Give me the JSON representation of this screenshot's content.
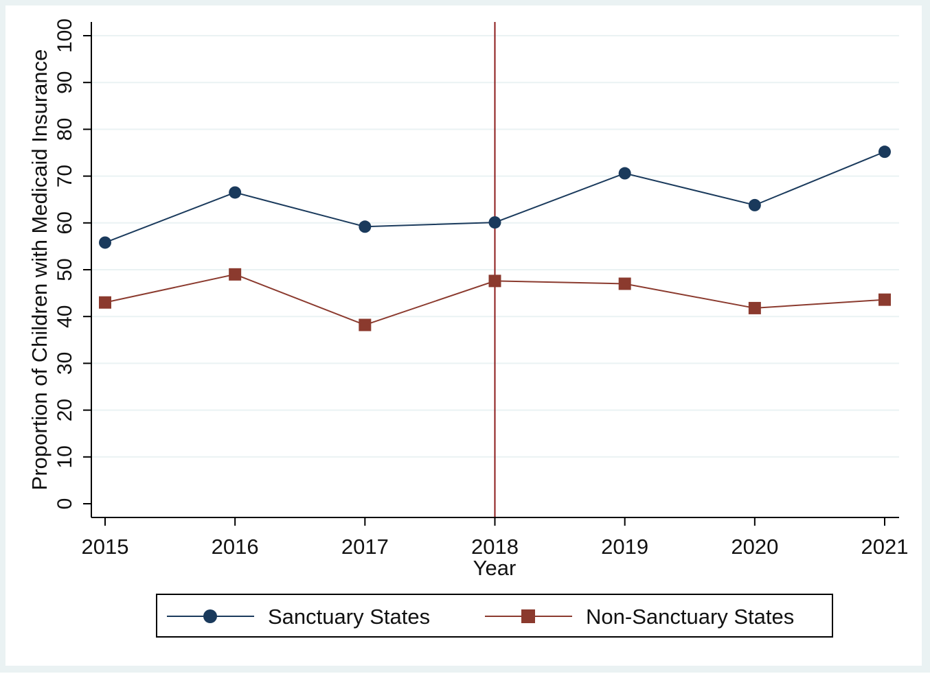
{
  "chart_data": {
    "type": "line",
    "title": "",
    "xlabel": "Year",
    "ylabel": "Proportion of Children with Medicaid Insurance",
    "x": [
      2015,
      2016,
      2017,
      2018,
      2019,
      2020,
      2021
    ],
    "x_tick_labels": [
      "2015",
      "2016",
      "2017",
      "2018",
      "2019",
      "2020",
      "2021"
    ],
    "y_ticks": [
      0,
      10,
      20,
      30,
      40,
      50,
      60,
      70,
      80,
      90,
      100
    ],
    "y_tick_labels": [
      "0",
      "10",
      "20",
      "30",
      "40",
      "50",
      "60",
      "70",
      "80",
      "90",
      "100"
    ],
    "ylim": [
      -3,
      103
    ],
    "xlim": [
      2015,
      2021
    ],
    "grid": "horizontal",
    "legend_position": "bottom",
    "reference_line": {
      "x": 2018,
      "color": "#8b1a1a"
    },
    "series": [
      {
        "name": "Sanctuary States",
        "values": [
          55.8,
          66.5,
          59.2,
          60.1,
          70.6,
          63.8,
          75.2
        ],
        "color": "#1a3a5c",
        "marker": "circle"
      },
      {
        "name": "Non-Sanctuary States",
        "values": [
          43.0,
          49.0,
          38.2,
          47.6,
          47.0,
          41.8,
          43.6
        ],
        "color": "#8b3a2e",
        "marker": "square"
      }
    ]
  },
  "colors": {
    "outer_background": "#eaf2f3",
    "plot_background": "#ffffff",
    "grid": "#eaf2f3",
    "axis": "#000000"
  }
}
